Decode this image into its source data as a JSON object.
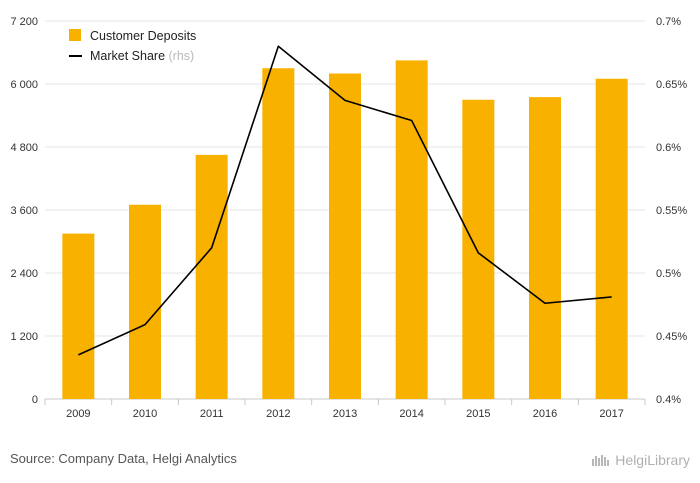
{
  "chart_data": {
    "type": "bar+line",
    "categories": [
      "2009",
      "2010",
      "2011",
      "2012",
      "2013",
      "2014",
      "2015",
      "2016",
      "2017"
    ],
    "series": [
      {
        "name": "Customer Deposits",
        "type": "bar",
        "axis": "left",
        "values": [
          3150,
          3700,
          4650,
          6300,
          6200,
          6450,
          5700,
          5750,
          6100
        ]
      },
      {
        "name": "Market Share",
        "legend_suffix": "(rhs)",
        "type": "line",
        "axis": "right",
        "values": [
          0.435,
          0.459,
          0.52,
          0.68,
          0.637,
          0.621,
          0.516,
          0.476,
          0.481
        ]
      }
    ],
    "y_left": {
      "ylim": [
        0,
        7200
      ],
      "ticks": [
        0,
        1200,
        2400,
        3600,
        4800,
        6000,
        7200
      ],
      "tick_labels": [
        "0",
        "1 200",
        "2 400",
        "3 600",
        "4 800",
        "6 000",
        "7 200"
      ]
    },
    "y_right": {
      "ylim": [
        0.4,
        0.7
      ],
      "ticks": [
        0.4,
        0.45,
        0.5,
        0.55,
        0.6,
        0.65,
        0.7
      ],
      "tick_labels": [
        "0.4%",
        "0.45%",
        "0.5%",
        "0.55%",
        "0.6%",
        "0.65%",
        "0.7%"
      ]
    },
    "grid": true,
    "legend_position": "top-left",
    "colors": {
      "bar": "#f9b100",
      "line": "#000000",
      "grid": "#e5e5e5"
    }
  },
  "footer": {
    "source": "Source: Company Data, Helgi Analytics",
    "brand": "HelgiLibrary"
  }
}
